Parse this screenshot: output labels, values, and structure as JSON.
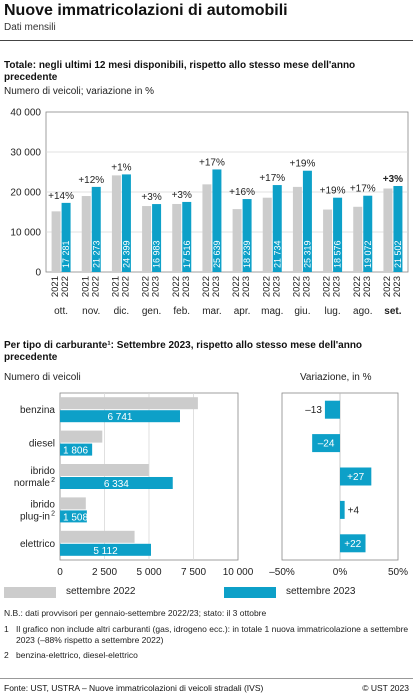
{
  "header": {
    "title": "Nuove immatricolazioni di automobili",
    "subtitle": "Dati mensili"
  },
  "colors": {
    "prev": "#cccccc",
    "curr": "#0da0c8"
  },
  "chart_data": [
    {
      "type": "bar",
      "title": "Totale: negli ultimi 12 mesi disponibili, rispetto allo stesso mese dell'anno precedente",
      "ylabel": "Numero di veicoli; variazione in %",
      "ylim": [
        0,
        40000
      ],
      "yticks": [
        0,
        10000,
        20000,
        30000,
        40000
      ],
      "ytick_labels": [
        "0",
        "10 000",
        "20 000",
        "30 000",
        "40 000"
      ],
      "categories": [
        {
          "years": [
            "2021",
            "2022"
          ],
          "month": "ott."
        },
        {
          "years": [
            "2021",
            "2022"
          ],
          "month": "nov."
        },
        {
          "years": [
            "2021",
            "2022"
          ],
          "month": "dic."
        },
        {
          "years": [
            "2022",
            "2023"
          ],
          "month": "gen."
        },
        {
          "years": [
            "2022",
            "2023"
          ],
          "month": "feb."
        },
        {
          "years": [
            "2022",
            "2023"
          ],
          "month": "mar."
        },
        {
          "years": [
            "2022",
            "2023"
          ],
          "month": "apr."
        },
        {
          "years": [
            "2022",
            "2023"
          ],
          "month": "mag."
        },
        {
          "years": [
            "2022",
            "2023"
          ],
          "month": "giu."
        },
        {
          "years": [
            "2022",
            "2023"
          ],
          "month": "lug."
        },
        {
          "years": [
            "2022",
            "2023"
          ],
          "month": "ago."
        },
        {
          "years": [
            "2022",
            "2023"
          ],
          "month": "set."
        }
      ],
      "series": [
        {
          "values": [
            15160,
            18994,
            24157,
            16489,
            17006,
            21912,
            15723,
            18576,
            21276,
            15610,
            16301,
            20876
          ]
        },
        {
          "values": [
            17281,
            21273,
            24399,
            16983,
            17516,
            25639,
            18239,
            21734,
            25319,
            18576,
            19072,
            21502
          ]
        }
      ],
      "value_labels": [
        "17 281",
        "21 273",
        "24 399",
        "16 983",
        "17 516",
        "25 639",
        "18 239",
        "21 734",
        "25 319",
        "18 576",
        "19 072",
        "21 502"
      ],
      "changes": [
        "+14%",
        "+12%",
        "+1%",
        "+3%",
        "+3%",
        "+17%",
        "+16%",
        "+17%",
        "+19%",
        "+19%",
        "+17%",
        "+3%"
      ]
    },
    {
      "type": "bar",
      "orientation": "horizontal",
      "title": "Per tipo di carburante¹: Settembre 2023, rispetto allo stesso mese dell'anno precedente",
      "xlabel": "Numero di veicoli",
      "xlim": [
        0,
        10000
      ],
      "xticks": [
        0,
        2500,
        5000,
        7500,
        10000
      ],
      "xtick_labels": [
        "0",
        "2 500",
        "5 000",
        "7 500",
        "10 000"
      ],
      "categories": [
        {
          "lines": [
            "benzina"
          ]
        },
        {
          "lines": [
            "diesel"
          ]
        },
        {
          "lines": [
            "ibrido",
            "normale"
          ],
          "sup": "2"
        },
        {
          "lines": [
            "ibrido",
            "plug-in"
          ],
          "sup": "2"
        },
        {
          "lines": [
            "elettrico"
          ]
        }
      ],
      "series": [
        {
          "name": "settembre 2022",
          "values": [
            7747,
            2376,
            4987,
            1450,
            4190
          ]
        },
        {
          "name": "settembre 2023",
          "values": [
            6741,
            1806,
            6334,
            1508,
            5112
          ]
        }
      ],
      "value_labels": [
        "6 741",
        "1 806",
        "6 334",
        "1 508",
        "5 112"
      ]
    },
    {
      "type": "bar",
      "orientation": "horizontal",
      "title": "Variazione, in %",
      "xlim": [
        -50,
        50
      ],
      "xticks": [
        -50,
        0,
        50
      ],
      "xtick_labels": [
        "–50%",
        "0%",
        "50%"
      ],
      "values": [
        -13,
        -24,
        27,
        4,
        22
      ],
      "value_labels": [
        "–13",
        "–24",
        "+27",
        "+4",
        "+22"
      ]
    }
  ],
  "legend": [
    {
      "label": "settembre 2022"
    },
    {
      "label": "settembre 2023"
    }
  ],
  "notes": {
    "nb": "N.B.: dati provvisori per gennaio-settembre 2022/23; stato: il 3 ottobre",
    "f1_mark": "1",
    "f1": "Il grafico non include altri carburanti (gas, idrogeno ecc.): in totale 1 nuova immatricolazione a settembre 2023 (–88% rispetto a settembre 2022)",
    "f2_mark": "2",
    "f2": "benzina-elettrico, diesel-elettrico"
  },
  "footer": {
    "source": "Fonte: UST, USTRA – Nuove immatricolazioni di veicoli stradali (IVS)",
    "copyright": "© UST 2023"
  }
}
